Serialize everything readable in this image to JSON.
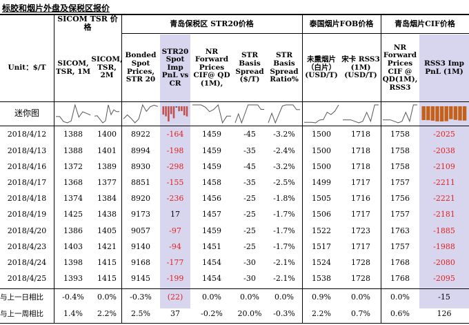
{
  "title": "标胶和烟片外盘及保税区报价",
  "group_headers": {
    "sicom": "SICOM TSR 价格",
    "qingdao_bonded": "青岛保税区 STR20价格",
    "thai_fob": "泰国烟片FOB价格",
    "qingdao_cif": "青岛烟片CIF价格"
  },
  "column_headers": {
    "unit": "Unit：$/T",
    "sicom_1m": "SICOM, TSR, 1M",
    "sicom_2m": "SICOM, TSR, 2M",
    "bonded_spot": "Bonded Spot Prices, STR 20",
    "str20_spot_pnl": "STR20 Spot Imp PnL vs CR",
    "nr_forward": "NR Forward Prices CIF@ QD (1M),",
    "str_spread": "STR Basis Spread ($/T)",
    "str_spread_ratio": "STR Basis Spread Ratio%",
    "smoked_sheet": "未熏烟片（白片）(USD/T)",
    "songka": "宋卡 RSS3 (1M) (USD/T)",
    "nr_forward_rss3": "NR Forward Prices CIF @ QD(1M), RSS3",
    "rss3_pnl": "RSS3 Imp PnL (1M)"
  },
  "mini_chart_label": "迷你图",
  "rows": [
    {
      "date": "2018/4/12",
      "values": [
        "1388",
        "1400",
        "8922",
        "-164",
        "1459",
        "-45",
        "-3.2%",
        "1500",
        "1718",
        "1758",
        "-2025"
      ]
    },
    {
      "date": "2018/4/13",
      "values": [
        "1388",
        "1401",
        "8994",
        "-198",
        "1459",
        "-35",
        "-2.4%",
        "1500",
        "1718",
        "1758",
        "-2038"
      ]
    },
    {
      "date": "2018/4/16",
      "values": [
        "1372",
        "1389",
        "8930",
        "-298",
        "1459",
        "-45",
        "-3.2%",
        "1500",
        "1718",
        "1758",
        "-2109"
      ]
    },
    {
      "date": "2018/4/17",
      "values": [
        "1368",
        "1377",
        "8851",
        "-155",
        "1458",
        "-35",
        "-2.5%",
        "1499",
        "1717",
        "1757",
        "-2211"
      ]
    },
    {
      "date": "2018/4/18",
      "values": [
        "1374",
        "1384",
        "8920",
        "-236",
        "1456",
        "-25",
        "-1.8%",
        "1505",
        "1716",
        "1756",
        "-2221"
      ]
    },
    {
      "date": "2018/4/19",
      "values": [
        "1425",
        "1438",
        "9173",
        "17",
        "1457",
        "-25",
        "-1.7%",
        "1506",
        "1717",
        "1757",
        "-2181"
      ]
    },
    {
      "date": "2018/4/20",
      "values": [
        "1386",
        "1405",
        "9057",
        "-97",
        "1459",
        "-25",
        "-1.7%",
        "1522",
        "1723",
        "1763",
        "-1885"
      ]
    },
    {
      "date": "2018/4/23",
      "values": [
        "1403",
        "1421",
        "9140",
        "-94",
        "1451",
        "-25",
        "-1.7%",
        "1517",
        "1717",
        "1757",
        "-1988"
      ]
    },
    {
      "date": "2018/4/24",
      "values": [
        "1398",
        "1415",
        "9168",
        "-177",
        "1454",
        "-30",
        "-2.1%",
        "1524",
        "1728",
        "1768",
        "-2080"
      ]
    },
    {
      "date": "2018/4/25",
      "values": [
        "1393",
        "1415",
        "9145",
        "-199",
        "1454",
        "-30",
        "-2.1%",
        "1538",
        "1728",
        "1768",
        "-2095"
      ]
    }
  ],
  "summary_rows": [
    {
      "label": "与上一日相比",
      "values": [
        "-0.4%",
        "0.0%",
        "-0.3%",
        "(22)",
        "0.0%",
        "0.0%",
        "0.0%",
        "0.9%",
        "0.0%",
        "0.0%",
        "-15"
      ]
    },
    {
      "label": "与上一周相比",
      "values": [
        "1.4%",
        "2.2%",
        "2.5%",
        "37",
        "-0.2%",
        "20.0%",
        "-0.3%",
        "2.2%",
        "0.7%",
        "0.6%",
        "126"
      ]
    }
  ],
  "colors": {
    "negative": "#e02020",
    "highlight": "#d8d6ee",
    "bar": "#c0504d",
    "bar_brown": "#c4601a",
    "bar_blue": "#3a6ab0",
    "line": "#555555"
  }
}
